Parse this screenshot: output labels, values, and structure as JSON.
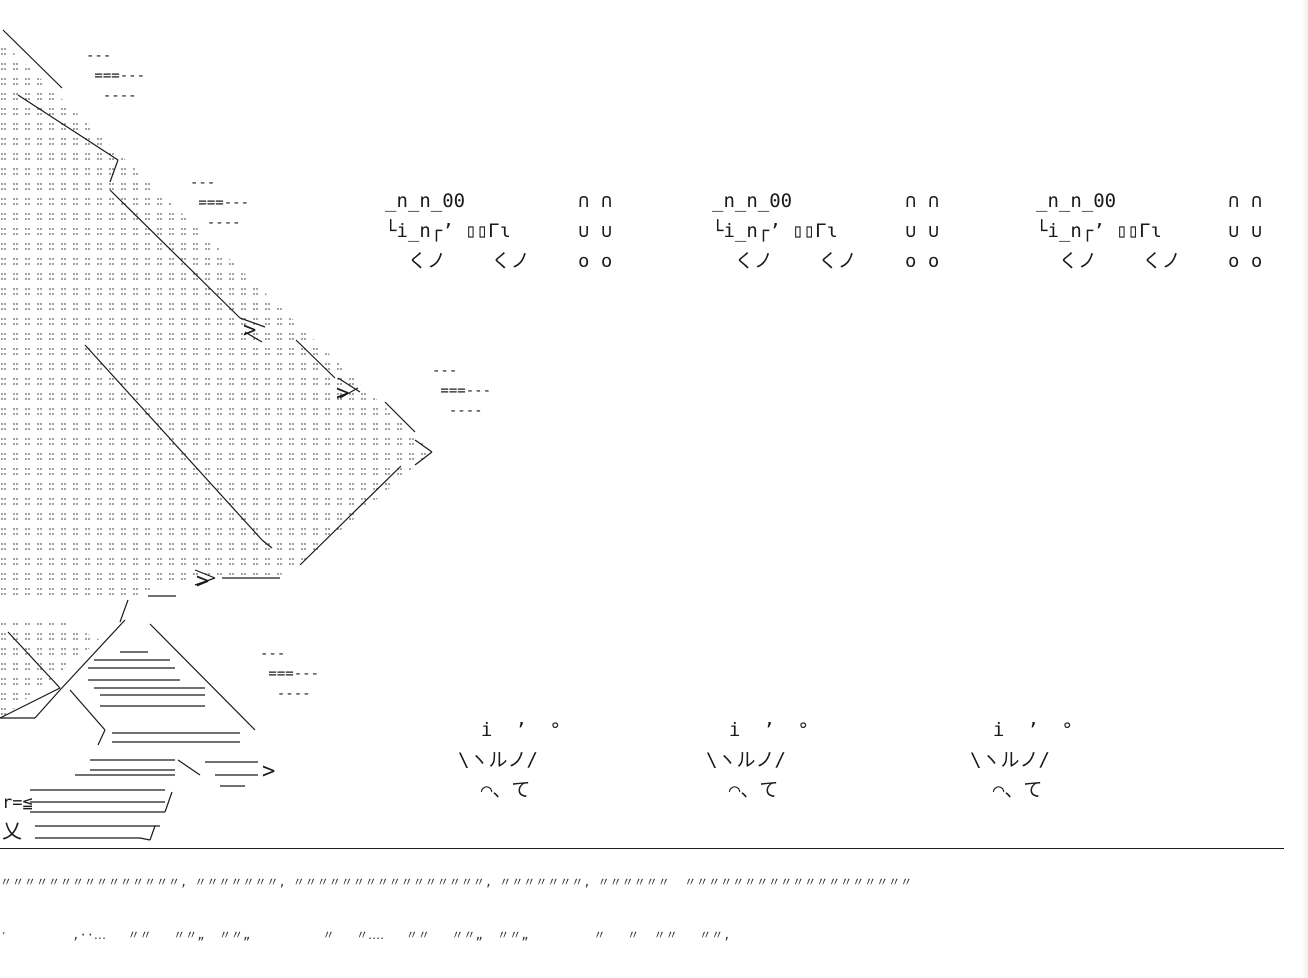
{
  "scene": {
    "sfx_text": [
      "_n_n_00\n└i_n┌’ ▯▯Γɩ\n  くノ    くノ",
      "∩ ∩\n∪ ∪\nο ο"
    ],
    "impact_burst": [
      "  i  ’  °\n\\ヽルノ∕\n  ⌒、て"
    ],
    "speed_lines": [
      "---\n ===---\n  ----"
    ],
    "ground_grass_row1": "〃〃〃〃〃〃〃〃〃〃〃〃〃〃〃, 〃〃〃〃〃〃〃, 〃〃〃〃〃〃〃〃〃〃〃〃〃〃〃〃, 〃〃〃〃〃〃〃, 〃〃〃〃〃〃  〃〃〃〃〃〃〃〃〃〃〃〃〃〃〃〃〃〃〃",
    "ground_grass_row2": "ˑ         ‚··․․․   〃〃   〃〃„  〃〃„          〃   〃․․․․   〃〃   〃〃„  〃〃„         〃   〃  〃〃   〃〃,"
  }
}
